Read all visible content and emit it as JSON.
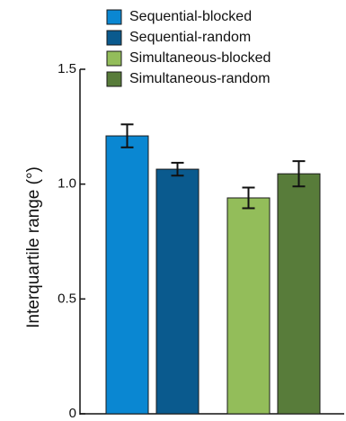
{
  "chart_data": {
    "type": "bar",
    "title": "",
    "xlabel": "",
    "ylabel": "Interquartile range (°)",
    "ylim": [
      0,
      1.5
    ],
    "yticks": [
      {
        "value": 0,
        "label": "0"
      },
      {
        "value": 0.5,
        "label": "0.5"
      },
      {
        "value": 1.0,
        "label": "1.0"
      },
      {
        "value": 1.5,
        "label": "1.5"
      }
    ],
    "grid": false,
    "legend_position": "top",
    "bars": [
      {
        "name": "Sequential-blocked",
        "value": 1.21,
        "error": 0.05,
        "color": "#0a87d2"
      },
      {
        "name": "Sequential-random",
        "value": 1.065,
        "error": 0.028,
        "color": "#0a5a8e"
      },
      {
        "name": "Simultaneous-blocked",
        "value": 0.94,
        "error": 0.045,
        "color": "#93bd5a"
      },
      {
        "name": "Simultaneous-random",
        "value": 1.045,
        "error": 0.055,
        "color": "#587c3a"
      }
    ]
  }
}
